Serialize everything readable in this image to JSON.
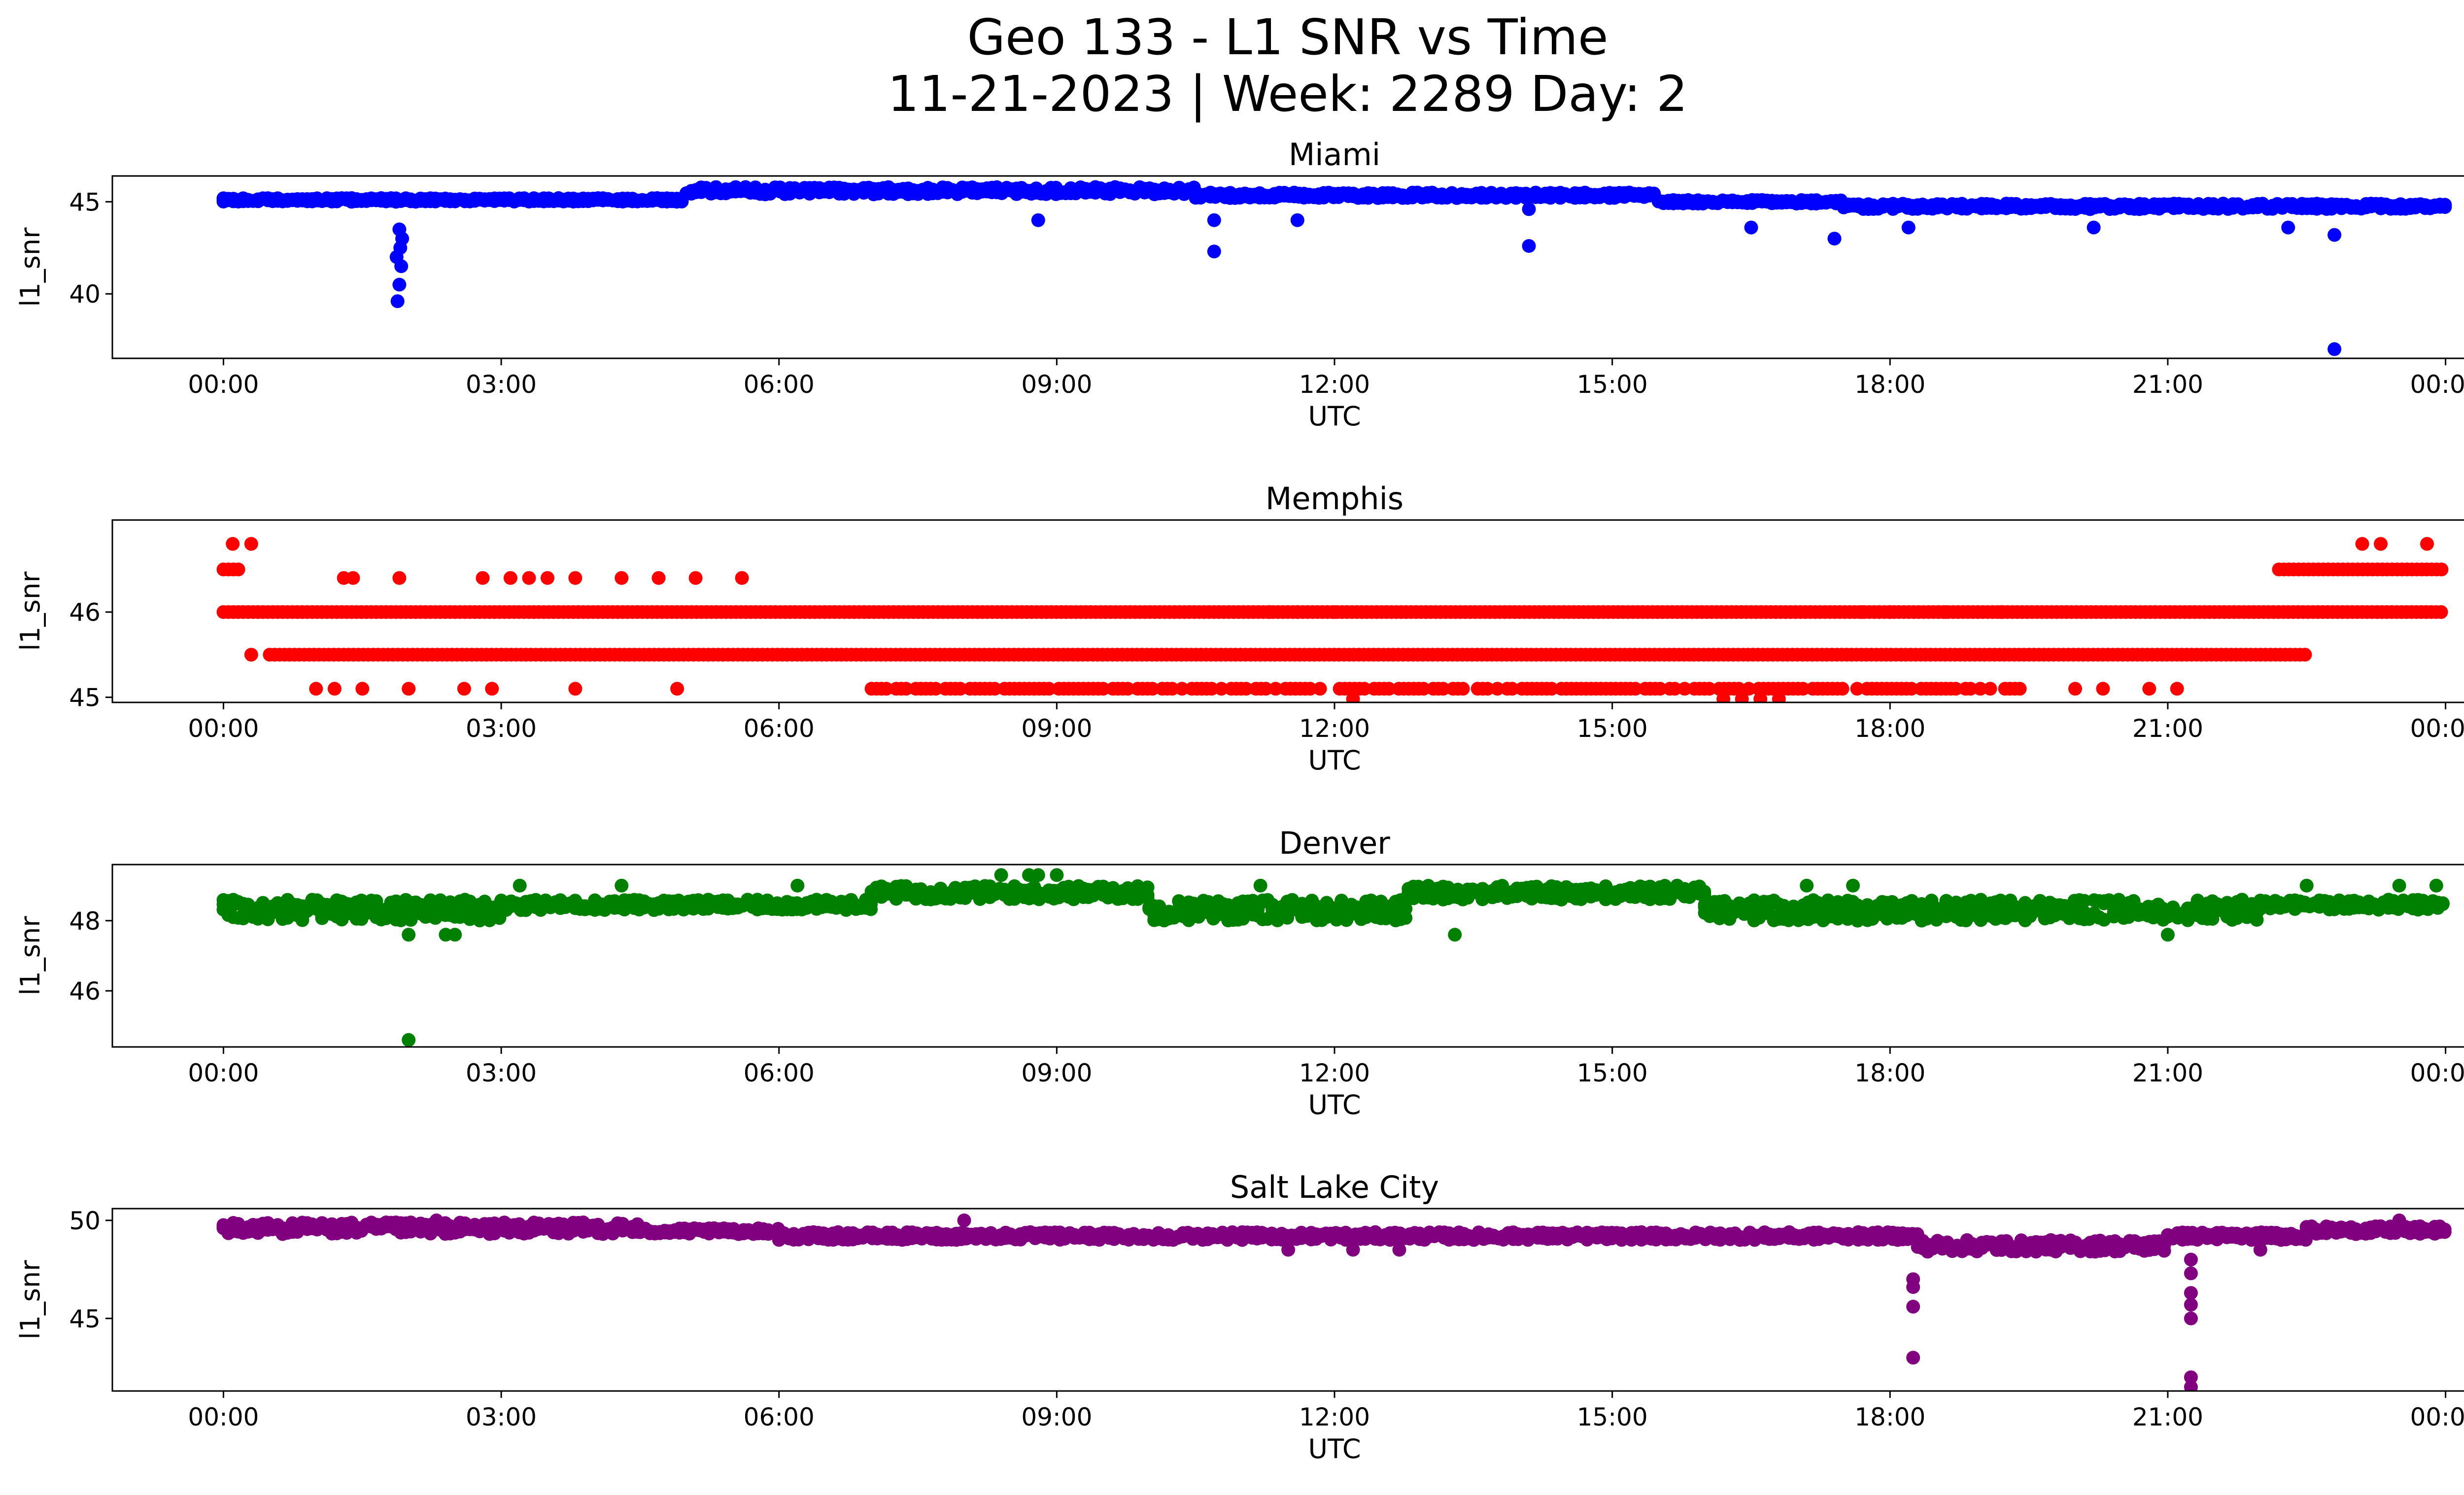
{
  "title_line1": "Geo 133 - L1 SNR vs Time",
  "title_line2": "11-21-2023 | Week: 2289 Day: 2",
  "chart_data": [
    {
      "type": "scatter",
      "title": "Miami",
      "xlabel": "UTC",
      "ylabel": "l1_snr",
      "color": "#0000ff",
      "xlim_hours": [
        -1.2,
        25.2
      ],
      "ylim": [
        36.5,
        46.4
      ],
      "xticks": [
        "00:00",
        "03:00",
        "06:00",
        "09:00",
        "12:00",
        "15:00",
        "18:00",
        "21:00",
        "00:00"
      ],
      "yticks": [
        {
          "value": 40,
          "label": "40"
        },
        {
          "value": 45,
          "label": "45"
        }
      ],
      "bands": [
        {
          "x0": 0.0,
          "x1": 5.0,
          "y": [
            45.0,
            45.2
          ]
        },
        {
          "x0": 5.0,
          "x1": 10.5,
          "y": [
            45.4,
            45.8
          ]
        },
        {
          "x0": 10.5,
          "x1": 15.5,
          "y": [
            45.2,
            45.5
          ]
        },
        {
          "x0": 15.5,
          "x1": 17.5,
          "y": [
            44.9,
            45.1
          ]
        },
        {
          "x0": 17.5,
          "x1": 24.0,
          "y": [
            44.6,
            44.9
          ]
        }
      ],
      "outliers": [
        [
          1.88,
          39.6
        ],
        [
          1.9,
          40.5
        ],
        [
          1.92,
          41.5
        ],
        [
          1.87,
          42.0
        ],
        [
          1.91,
          42.5
        ],
        [
          1.93,
          43.0
        ],
        [
          1.9,
          43.5
        ],
        [
          8.8,
          44.0
        ],
        [
          10.7,
          42.3
        ],
        [
          10.7,
          44.0
        ],
        [
          11.6,
          44.0
        ],
        [
          14.1,
          42.6
        ],
        [
          14.1,
          44.6
        ],
        [
          16.5,
          43.6
        ],
        [
          17.4,
          43.0
        ],
        [
          18.2,
          43.6
        ],
        [
          20.2,
          43.6
        ],
        [
          22.3,
          43.6
        ],
        [
          22.8,
          37.0
        ],
        [
          22.8,
          43.2
        ]
      ]
    },
    {
      "type": "scatter",
      "title": "Memphis",
      "xlabel": "UTC",
      "ylabel": "l1_snr",
      "color": "#ff0000",
      "xlim_hours": [
        -1.2,
        25.2
      ],
      "ylim": [
        44.94,
        47.08
      ],
      "xticks": [
        "00:00",
        "03:00",
        "06:00",
        "09:00",
        "12:00",
        "15:00",
        "18:00",
        "21:00",
        "00:00"
      ],
      "yticks": [
        {
          "value": 45,
          "label": "45"
        },
        {
          "value": 46,
          "label": "46"
        }
      ],
      "bands": [
        {
          "x0": 0.0,
          "x1": 24.0,
          "y": [
            46.0,
            46.0
          ],
          "density": 1.0
        },
        {
          "x0": 0.5,
          "x1": 22.5,
          "y": [
            45.5,
            45.5
          ],
          "density": 1.0
        },
        {
          "x0": 7.0,
          "x1": 19.5,
          "y": [
            45.1,
            45.1
          ],
          "density": 0.85
        },
        {
          "x0": 0.0,
          "x1": 0.2,
          "y": [
            46.5,
            46.5
          ],
          "density": 1.0
        },
        {
          "x0": 22.2,
          "x1": 24.0,
          "y": [
            46.5,
            46.5
          ],
          "density": 1.0
        }
      ],
      "outliers": [
        [
          0.1,
          46.8
        ],
        [
          0.3,
          46.8
        ],
        [
          23.1,
          46.8
        ],
        [
          23.3,
          46.8
        ],
        [
          23.8,
          46.8
        ],
        [
          1.3,
          46.4
        ],
        [
          1.4,
          46.4
        ],
        [
          1.9,
          46.4
        ],
        [
          2.8,
          46.4
        ],
        [
          3.1,
          46.4
        ],
        [
          3.3,
          46.4
        ],
        [
          3.5,
          46.4
        ],
        [
          3.8,
          46.4
        ],
        [
          4.3,
          46.4
        ],
        [
          4.7,
          46.4
        ],
        [
          5.1,
          46.4
        ],
        [
          5.6,
          46.4
        ],
        [
          0.3,
          45.5
        ],
        [
          1.0,
          45.1
        ],
        [
          1.2,
          45.1
        ],
        [
          1.5,
          45.1
        ],
        [
          2.0,
          45.1
        ],
        [
          2.6,
          45.1
        ],
        [
          2.9,
          45.1
        ],
        [
          3.8,
          45.1
        ],
        [
          4.9,
          45.1
        ],
        [
          20.0,
          45.1
        ],
        [
          20.3,
          45.1
        ],
        [
          20.8,
          45.1
        ],
        [
          21.1,
          45.1
        ],
        [
          12.2,
          44.98
        ],
        [
          16.2,
          44.98
        ],
        [
          16.4,
          44.98
        ],
        [
          16.6,
          44.98
        ],
        [
          16.8,
          44.98
        ],
        [
          11.3,
          46.0
        ],
        [
          11.6,
          46.0
        ],
        [
          12.0,
          46.0
        ],
        [
          17.7,
          46.0
        ],
        [
          18.0,
          46.0
        ],
        [
          18.6,
          46.0
        ],
        [
          19.2,
          46.0
        ]
      ]
    },
    {
      "type": "scatter",
      "title": "Denver",
      "xlabel": "UTC",
      "ylabel": "l1_snr",
      "color": "#008000",
      "xlim_hours": [
        -1.2,
        25.2
      ],
      "ylim": [
        44.4,
        49.6
      ],
      "xticks": [
        "00:00",
        "03:00",
        "06:00",
        "09:00",
        "12:00",
        "15:00",
        "18:00",
        "21:00",
        "00:00"
      ],
      "yticks": [
        {
          "value": 46,
          "label": "46"
        },
        {
          "value": 48,
          "label": "48"
        }
      ],
      "bands": [
        {
          "x0": 0.0,
          "x1": 3.0,
          "y": [
            48.0,
            48.6
          ]
        },
        {
          "x0": 3.0,
          "x1": 7.0,
          "y": [
            48.3,
            48.6
          ]
        },
        {
          "x0": 7.0,
          "x1": 10.0,
          "y": [
            48.6,
            49.0
          ]
        },
        {
          "x0": 10.0,
          "x1": 12.8,
          "y": [
            48.0,
            48.6
          ]
        },
        {
          "x0": 12.8,
          "x1": 16.0,
          "y": [
            48.6,
            49.0
          ]
        },
        {
          "x0": 16.0,
          "x1": 22.0,
          "y": [
            48.0,
            48.6
          ]
        },
        {
          "x0": 22.0,
          "x1": 24.0,
          "y": [
            48.3,
            48.6
          ]
        }
      ],
      "outliers": [
        [
          2.0,
          44.6
        ],
        [
          2.0,
          47.6
        ],
        [
          2.4,
          47.6
        ],
        [
          2.5,
          47.6
        ],
        [
          13.3,
          47.6
        ],
        [
          21.0,
          47.6
        ],
        [
          8.4,
          49.3
        ],
        [
          8.7,
          49.3
        ],
        [
          8.8,
          49.3
        ],
        [
          9.0,
          49.3
        ],
        [
          3.2,
          49.0
        ],
        [
          4.3,
          49.0
        ],
        [
          6.2,
          49.0
        ],
        [
          11.2,
          49.0
        ],
        [
          15.7,
          49.0
        ],
        [
          17.1,
          49.0
        ],
        [
          17.6,
          49.0
        ],
        [
          22.5,
          49.0
        ],
        [
          23.5,
          49.0
        ],
        [
          23.9,
          49.0
        ]
      ]
    },
    {
      "type": "scatter",
      "title": "Salt Lake City",
      "xlabel": "UTC",
      "ylabel": "l1_snr",
      "color": "#800080",
      "xlim_hours": [
        -1.2,
        25.2
      ],
      "ylim": [
        41.3,
        50.6
      ],
      "xticks": [
        "00:00",
        "03:00",
        "06:00",
        "09:00",
        "12:00",
        "15:00",
        "18:00",
        "21:00",
        "00:00"
      ],
      "yticks": [
        {
          "value": 45,
          "label": "45"
        },
        {
          "value": 50,
          "label": "50"
        }
      ],
      "bands": [
        {
          "x0": 0.0,
          "x1": 4.5,
          "y": [
            49.3,
            49.9
          ]
        },
        {
          "x0": 4.5,
          "x1": 6.0,
          "y": [
            49.3,
            49.6
          ]
        },
        {
          "x0": 6.0,
          "x1": 18.3,
          "y": [
            49.0,
            49.4
          ]
        },
        {
          "x0": 18.3,
          "x1": 21.0,
          "y": [
            48.4,
            49.0
          ]
        },
        {
          "x0": 21.0,
          "x1": 22.5,
          "y": [
            49.0,
            49.4
          ]
        },
        {
          "x0": 22.5,
          "x1": 24.0,
          "y": [
            49.3,
            49.7
          ]
        }
      ],
      "outliers": [
        [
          18.25,
          43.0
        ],
        [
          18.25,
          45.6
        ],
        [
          18.25,
          46.6
        ],
        [
          18.25,
          47.0
        ],
        [
          21.25,
          41.5
        ],
        [
          21.25,
          42.0
        ],
        [
          21.25,
          45.0
        ],
        [
          21.25,
          45.7
        ],
        [
          21.25,
          46.3
        ],
        [
          21.25,
          47.3
        ],
        [
          21.25,
          48.0
        ],
        [
          11.5,
          48.5
        ],
        [
          12.2,
          48.5
        ],
        [
          12.7,
          48.5
        ],
        [
          22.0,
          48.5
        ],
        [
          2.3,
          50.0
        ],
        [
          8.0,
          50.0
        ],
        [
          23.5,
          50.0
        ]
      ]
    }
  ]
}
